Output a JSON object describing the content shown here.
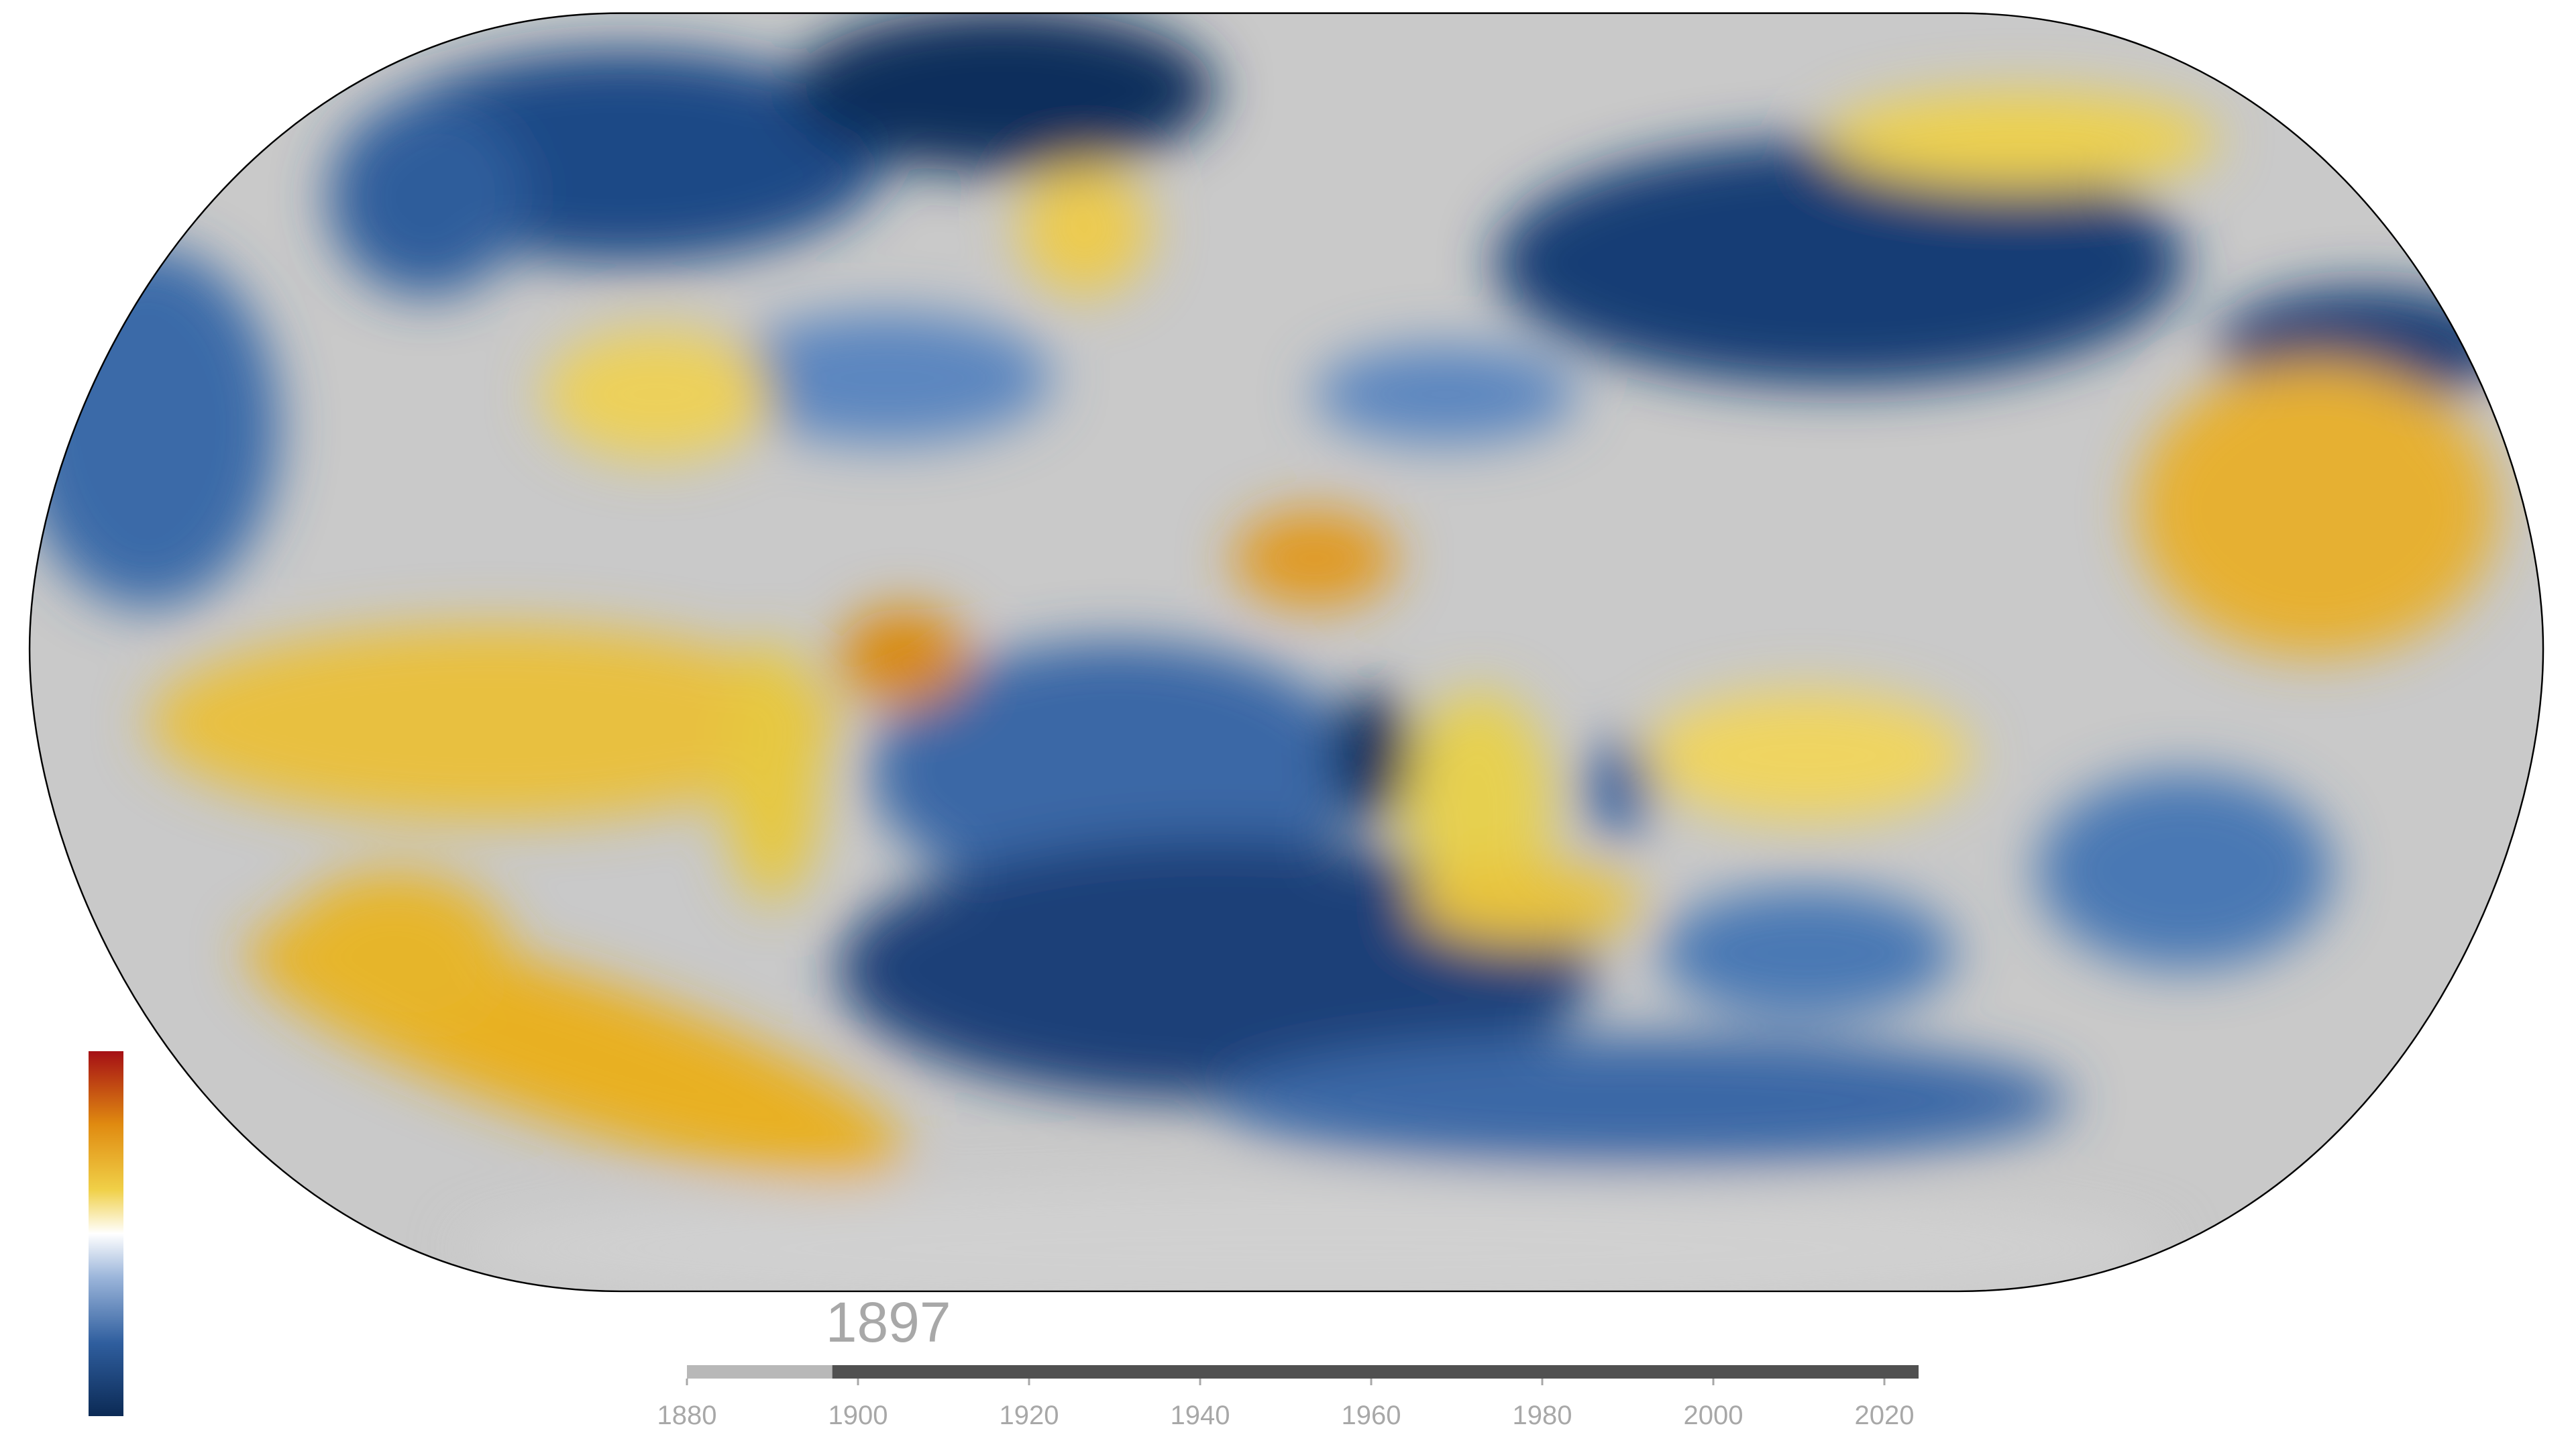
{
  "year": 1897,
  "timeline": {
    "range": [
      1880,
      2024
    ],
    "ticks": [
      1880,
      1900,
      1920,
      1940,
      1960,
      1980,
      2000,
      2020
    ]
  }
}
